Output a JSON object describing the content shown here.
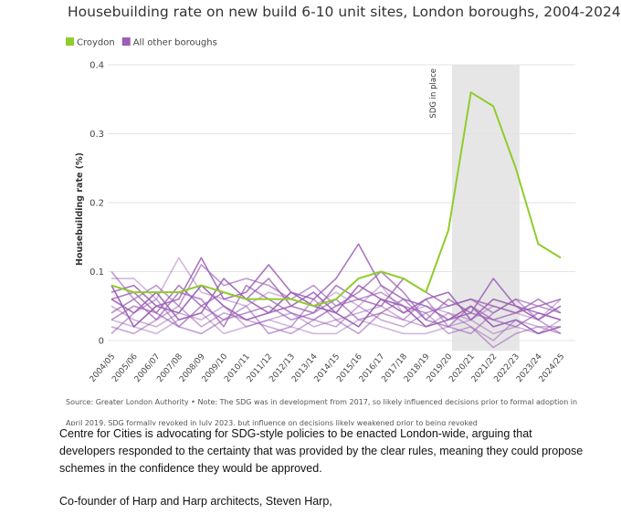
{
  "chart_data": {
    "type": "line",
    "title": "Housebuilding rate on new build 6-10 unit sites, London boroughs, 2004-2024",
    "y_label": "Housebuilding rate (%)",
    "categories": [
      "2004/05",
      "2005/06",
      "2006/07",
      "2007/08",
      "2008/09",
      "2009/10",
      "2010/11",
      "2011/12",
      "2012/13",
      "2013/14",
      "2014/15",
      "2015/16",
      "2016/17",
      "2017/18",
      "2018/19",
      "2019/20",
      "2020/21",
      "2021/22",
      "2022/23",
      "2023/24",
      "2024/25"
    ],
    "ylim": [
      -0.015,
      0.4
    ],
    "yticks": [
      0,
      0.1,
      0.2,
      0.3,
      0.4
    ],
    "grid": true,
    "shaded": {
      "from": "2019/20",
      "to": "2022/23",
      "label": "SDG in place",
      "color": "#e6e6e6"
    },
    "series": [
      {
        "name": "Croydon",
        "color": "#8fcc2b",
        "values": [
          0.08,
          0.07,
          0.07,
          0.07,
          0.08,
          0.07,
          0.06,
          0.06,
          0.06,
          0.05,
          0.06,
          0.09,
          0.1,
          0.09,
          0.07,
          0.16,
          0.36,
          0.34,
          0.25,
          0.14,
          0.12
        ]
      },
      {
        "name": "All other boroughs",
        "color": "#9b5fb5",
        "lines": [
          [
            0.09,
            0.09,
            0.06,
            0.12,
            0.07,
            0.06,
            0.05,
            0.07,
            0.06,
            0.05,
            0.07,
            0.05,
            0.08,
            0.04,
            0.05,
            0.04,
            0.03,
            0.05,
            0.04,
            0.03,
            0.06
          ],
          [
            0.1,
            0.06,
            0.08,
            0.05,
            0.11,
            0.08,
            0.09,
            0.08,
            0.06,
            0.08,
            0.05,
            0.06,
            0.07,
            0.05,
            0.04,
            0.05,
            0.06,
            0.04,
            0.06,
            0.05,
            0.04
          ],
          [
            0.07,
            0.08,
            0.05,
            0.06,
            0.12,
            0.06,
            0.07,
            0.11,
            0.07,
            0.06,
            0.09,
            0.14,
            0.08,
            0.06,
            0.05,
            0.03,
            0.04,
            0.09,
            0.05,
            0.04,
            0.03
          ],
          [
            0.05,
            0.03,
            0.02,
            0.04,
            0.03,
            0.05,
            0.02,
            0.03,
            0.04,
            0.02,
            0.03,
            0.04,
            0.05,
            0.03,
            0.02,
            0.04,
            0.02,
            0.0,
            0.03,
            0.02,
            0.02
          ],
          [
            0.03,
            0.05,
            0.04,
            0.02,
            0.05,
            0.03,
            0.04,
            0.05,
            0.03,
            0.04,
            0.06,
            0.03,
            0.04,
            0.06,
            0.03,
            0.02,
            0.05,
            0.03,
            0.02,
            0.04,
            0.03
          ],
          [
            0.06,
            0.04,
            0.07,
            0.03,
            0.04,
            0.09,
            0.06,
            0.04,
            0.05,
            0.07,
            0.04,
            0.08,
            0.06,
            0.04,
            0.06,
            0.07,
            0.03,
            0.06,
            0.05,
            0.03,
            0.05
          ],
          [
            0.02,
            0.01,
            0.03,
            0.05,
            0.02,
            0.04,
            0.03,
            0.02,
            0.01,
            0.03,
            0.02,
            0.05,
            0.03,
            0.02,
            0.04,
            0.01,
            0.02,
            -0.01,
            0.01,
            0.02,
            0.01
          ],
          [
            0.04,
            0.06,
            0.03,
            0.07,
            0.06,
            0.02,
            0.08,
            0.06,
            0.04,
            0.03,
            0.05,
            0.07,
            0.1,
            0.07,
            0.03,
            0.06,
            0.04,
            0.03,
            0.04,
            0.06,
            0.04
          ],
          [
            0.08,
            0.02,
            0.05,
            0.04,
            0.08,
            0.05,
            0.03,
            0.04,
            0.07,
            0.05,
            0.04,
            0.02,
            0.06,
            0.05,
            0.02,
            0.03,
            0.05,
            0.02,
            0.03,
            0.01,
            0.02
          ],
          [
            0.01,
            0.04,
            0.06,
            0.02,
            0.01,
            0.03,
            0.05,
            0.01,
            0.02,
            0.06,
            0.03,
            0.01,
            0.04,
            0.03,
            0.06,
            0.02,
            0.01,
            0.04,
            0.06,
            0.03,
            0.01
          ],
          [
            0.06,
            0.07,
            0.04,
            0.08,
            0.05,
            0.07,
            0.06,
            0.09,
            0.05,
            0.04,
            0.08,
            0.06,
            0.05,
            0.09,
            0.07,
            0.05,
            0.06,
            0.05,
            0.04,
            0.05,
            0.06
          ],
          [
            0.03,
            0.02,
            0.01,
            0.03,
            0.04,
            0.01,
            0.02,
            0.03,
            0.02,
            0.01,
            0.01,
            0.03,
            0.02,
            0.01,
            0.01,
            0.02,
            0.03,
            0.01,
            0.02,
            0.01,
            0.03
          ]
        ]
      }
    ],
    "source": "Source: Greater London Authority • Note: The SDG was in development from 2017, so likely influenced decisions prior to formal adoption in",
    "source_line2": "April 2019. SDG formally revoked in July 2023, but influence on decisions likely weakened prior to being revoked"
  },
  "paragraphs": [
    "Centre for Cities is advocating for SDG-style policies to be enacted London-wide, arguing that developers responded to the certainty that was provided by the clear rules, meaning they could propose schemes in the confidence they would be approved.",
    "Co-founder of Harp and Harp architects, Steven Harp,"
  ]
}
